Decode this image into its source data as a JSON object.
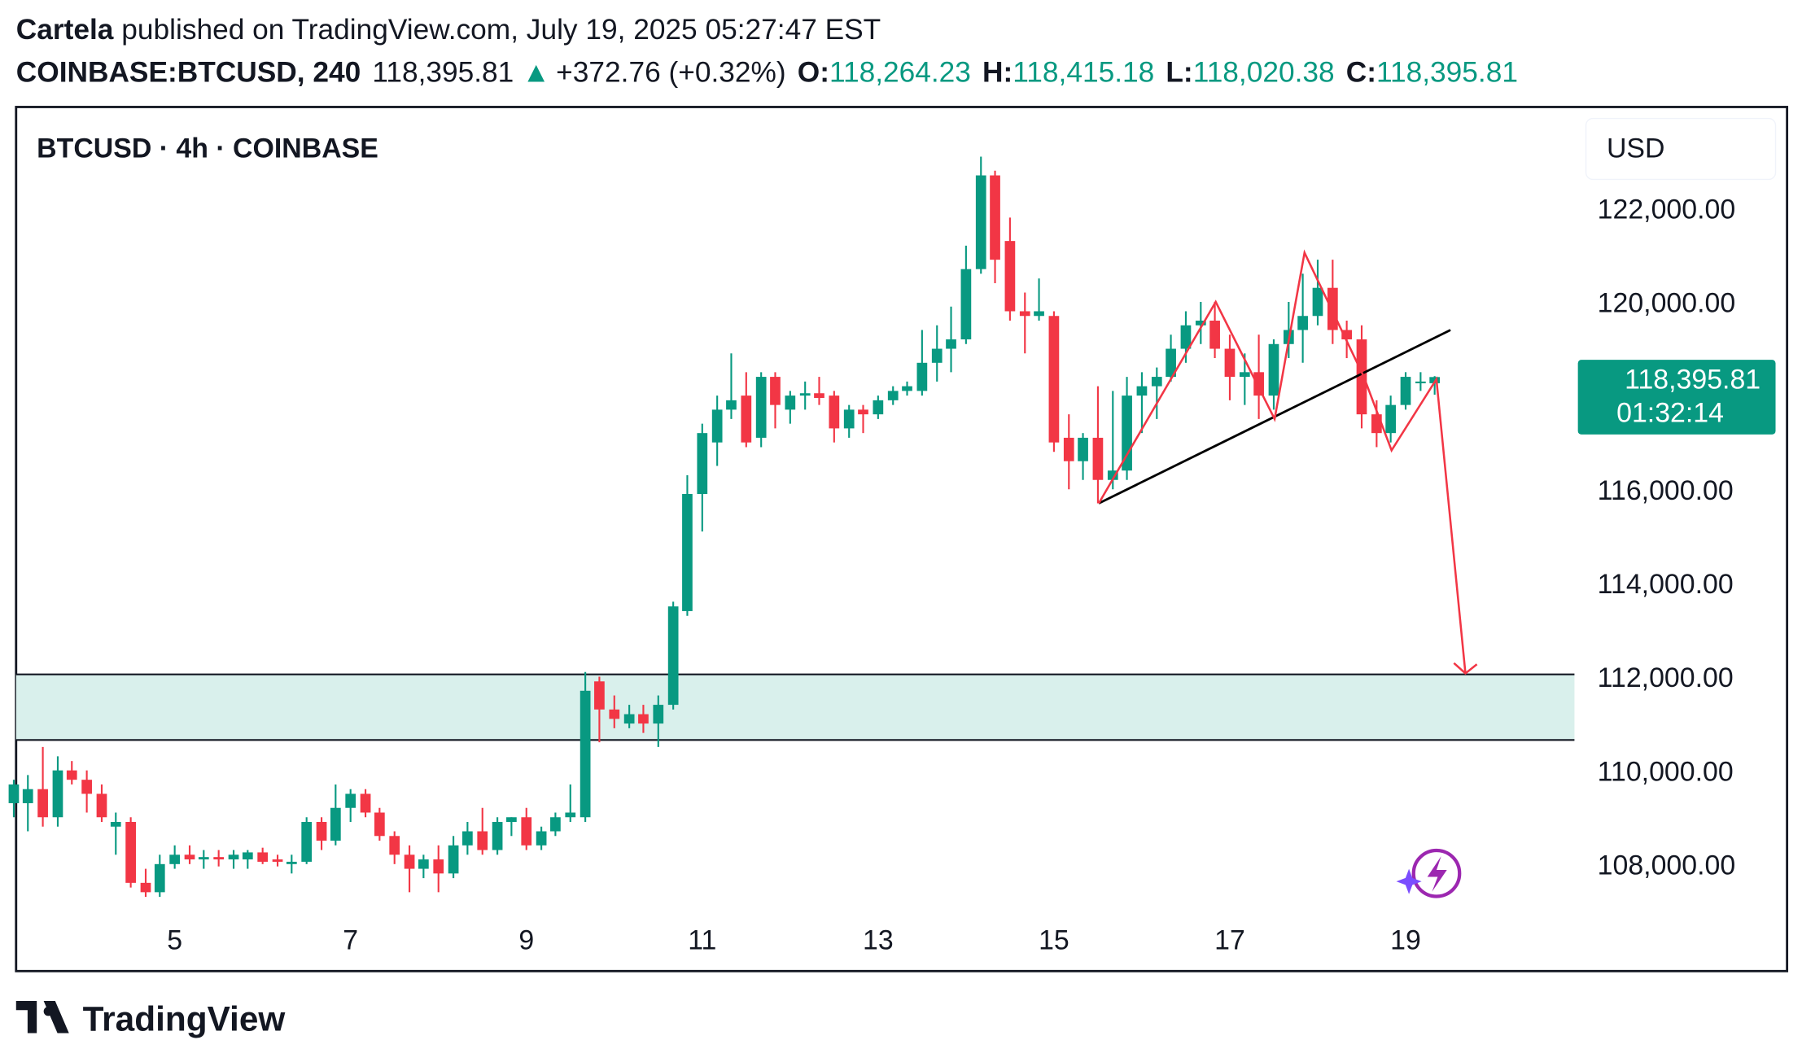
{
  "header": {
    "author": "Cartela",
    "published": "published on TradingView.com, July 19, 2025 05:27:47 EST",
    "symbol": "COINBASE:BTCUSD, 240",
    "last": "118,395.81",
    "arrow": "▲",
    "change": "+372.76 (+0.32%)",
    "o_label": "O:",
    "o_value": "118,264.23",
    "h_label": "H:",
    "h_value": "118,415.18",
    "l_label": "L:",
    "l_value": "118,020.38",
    "c_label": "C:",
    "c_value": "118,395.81"
  },
  "chart_data": {
    "type": "candlestick",
    "title": "BTCUSD · 4h · COINBASE",
    "currency": "USD",
    "price_label": "118,395.81",
    "countdown": "01:32:14",
    "up_color": "#089981",
    "down_color": "#f23645",
    "xlim": [
      3.196,
      20.92
    ],
    "xticks": [
      5,
      7,
      9,
      11,
      13,
      15,
      17,
      19
    ],
    "ylim": [
      106820,
      124160
    ],
    "yticks": [
      {
        "value": 108000,
        "label": "108,000.00"
      },
      {
        "value": 110000,
        "label": "110,000.00"
      },
      {
        "value": 112000,
        "label": "112,000.00"
      },
      {
        "value": 114000,
        "label": "114,000.00"
      },
      {
        "value": 116000,
        "label": "116,000.00"
      },
      {
        "value": 118000,
        "label": "118,000.00"
      },
      {
        "value": 120000,
        "label": "120,000.00"
      },
      {
        "value": 122000,
        "label": "122,000.00"
      }
    ],
    "x": [
      3.17,
      3.33,
      3.5,
      3.67,
      3.83,
      4,
      4.17,
      4.33,
      4.5,
      4.67,
      4.83,
      5,
      5.17,
      5.33,
      5.5,
      5.67,
      5.83,
      6,
      6.17,
      6.33,
      6.5,
      6.67,
      6.83,
      7,
      7.17,
      7.33,
      7.5,
      7.67,
      7.83,
      8,
      8.17,
      8.33,
      8.5,
      8.67,
      8.83,
      9,
      9.17,
      9.33,
      9.5,
      9.67,
      9.83,
      10,
      10.17,
      10.33,
      10.5,
      10.67,
      10.83,
      11,
      11.17,
      11.33,
      11.5,
      11.67,
      11.83,
      12,
      12.17,
      12.33,
      12.5,
      12.67,
      12.83,
      13,
      13.17,
      13.33,
      13.5,
      13.67,
      13.83,
      14,
      14.17,
      14.33,
      14.5,
      14.67,
      14.83,
      15,
      15.17,
      15.33,
      15.5,
      15.67,
      15.83,
      16,
      16.17,
      16.33,
      16.5,
      16.67,
      16.83,
      17,
      17.17,
      17.33,
      17.5,
      17.67,
      17.83,
      18,
      18.17,
      18.33,
      18.5,
      18.67,
      18.83,
      19,
      19.17,
      19.33
    ],
    "open": [
      109300,
      109300,
      109600,
      109000,
      110000,
      109800,
      109500,
      108800,
      108900,
      107600,
      107400,
      108000,
      108200,
      108100,
      108150,
      108100,
      108100,
      108250,
      108100,
      108000,
      108050,
      108900,
      108500,
      109200,
      109500,
      109100,
      108600,
      108200,
      107900,
      108100,
      107800,
      108400,
      108700,
      108300,
      108900,
      109000,
      108400,
      108700,
      109000,
      109000,
      111900,
      111300,
      111000,
      111200,
      111000,
      111400,
      113400,
      115900,
      117000,
      117700,
      118000,
      117100,
      118400,
      117700,
      118000,
      118050,
      118000,
      117300,
      117700,
      117600,
      117900,
      118100,
      118100,
      118700,
      119000,
      119200,
      120700,
      122700,
      121300,
      119800,
      119700,
      119700,
      117100,
      116600,
      117100,
      116200,
      116400,
      118000,
      118200,
      118400,
      119000,
      119500,
      119600,
      119000,
      118400,
      118500,
      118000,
      119100,
      119400,
      119700,
      120300,
      119400,
      119200,
      117600,
      117200,
      117800,
      118300,
      118264
    ],
    "high": [
      109800,
      109900,
      110500,
      110300,
      110200,
      110000,
      109700,
      109100,
      109000,
      107900,
      108200,
      108400,
      108400,
      108300,
      108300,
      108300,
      108300,
      108350,
      108200,
      108200,
      109000,
      109000,
      109700,
      109600,
      109600,
      109200,
      108700,
      108400,
      108200,
      108400,
      108600,
      108900,
      109200,
      109000,
      109000,
      109200,
      108800,
      109100,
      109700,
      112100,
      112000,
      111600,
      111400,
      111400,
      111600,
      113600,
      116300,
      117400,
      118000,
      118900,
      118500,
      118500,
      118500,
      118100,
      118300,
      118400,
      118100,
      117800,
      117800,
      118000,
      118200,
      118300,
      119400,
      119500,
      119900,
      121200,
      123100,
      122800,
      121800,
      120200,
      120500,
      119800,
      117600,
      117200,
      118200,
      118100,
      118400,
      118500,
      118600,
      119300,
      119800,
      120000,
      120000,
      119300,
      118900,
      119300,
      119200,
      120000,
      120600,
      120900,
      120900,
      119600,
      119500,
      117900,
      118000,
      118500,
      118500,
      118415
    ],
    "low": [
      109000,
      108700,
      108800,
      108800,
      109700,
      109100,
      108900,
      108200,
      107500,
      107300,
      107300,
      107900,
      108000,
      107900,
      107950,
      107900,
      107900,
      108000,
      107950,
      107800,
      108000,
      108300,
      108400,
      108900,
      109000,
      108500,
      108000,
      107400,
      107700,
      107400,
      107700,
      108200,
      108200,
      108200,
      108600,
      108300,
      108300,
      108600,
      108900,
      108900,
      110600,
      110900,
      110900,
      110800,
      110500,
      111300,
      113300,
      115100,
      116500,
      117500,
      116900,
      116900,
      117300,
      117400,
      117700,
      117800,
      117000,
      117100,
      117200,
      117500,
      117800,
      118000,
      118000,
      118300,
      118500,
      119100,
      120600,
      120400,
      119600,
      118900,
      119600,
      116800,
      116000,
      116200,
      115700,
      116000,
      116200,
      117200,
      117500,
      118300,
      118700,
      119100,
      118800,
      117900,
      117800,
      117500,
      117700,
      118800,
      118700,
      119500,
      119100,
      118800,
      117300,
      116900,
      117000,
      117700,
      118100,
      118020
    ],
    "close": [
      109700,
      109600,
      109000,
      110000,
      109800,
      109500,
      109000,
      108900,
      107600,
      107400,
      108000,
      108200,
      108100,
      108150,
      108100,
      108200,
      108250,
      108050,
      108050,
      108050,
      108900,
      108500,
      109200,
      109500,
      109100,
      108600,
      108200,
      107900,
      108100,
      107800,
      108400,
      108700,
      108300,
      108900,
      109000,
      108400,
      108700,
      109000,
      109100,
      111700,
      111300,
      111100,
      111200,
      111000,
      111400,
      113500,
      115900,
      117200,
      117700,
      117900,
      117000,
      118400,
      117800,
      118000,
      118050,
      117950,
      117300,
      117700,
      117600,
      117900,
      118100,
      118200,
      118700,
      119000,
      119200,
      120700,
      122700,
      120900,
      119800,
      119700,
      119800,
      117000,
      116600,
      117100,
      116200,
      116400,
      118000,
      118200,
      118400,
      119000,
      119500,
      119600,
      119000,
      118400,
      118500,
      118000,
      119100,
      119400,
      119700,
      120300,
      119400,
      119200,
      117600,
      117200,
      117800,
      118400,
      118300,
      118396
    ],
    "zone": {
      "top": 112050,
      "bottom": 110650,
      "color": "#d9f0ec"
    },
    "trendline": {
      "x": [
        15.51,
        19.51
      ],
      "y": [
        115700,
        119400
      ],
      "color": "#000000"
    },
    "projection": {
      "x": [
        15.51,
        16.84,
        17.51,
        17.85,
        18.52,
        18.84,
        19.35,
        19.68
      ],
      "y": [
        115700,
        120000,
        117500,
        121050,
        118420,
        116830,
        118350,
        112070
      ],
      "color": "#f23645"
    }
  },
  "footer": {
    "logo": "TradingView"
  }
}
